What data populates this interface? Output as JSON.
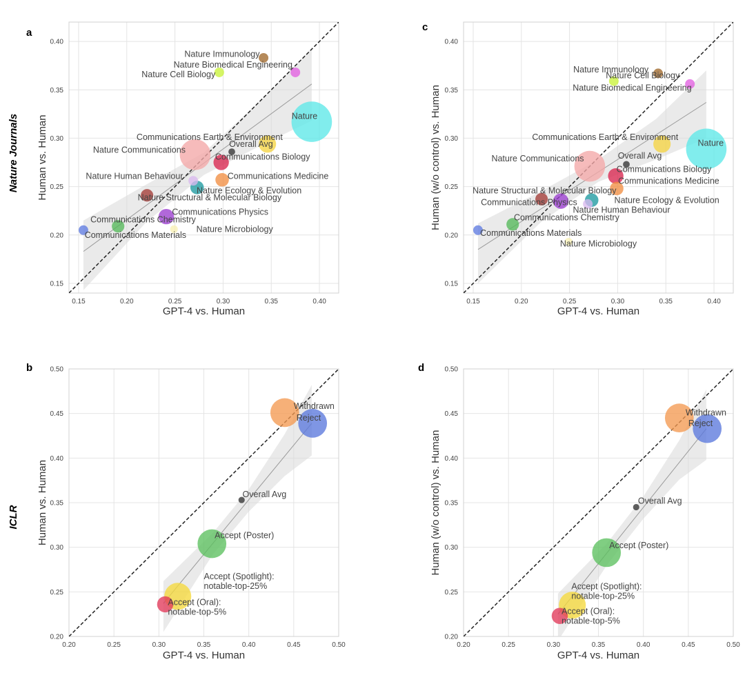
{
  "row_labels": [
    "Nature Journals",
    "ICLR"
  ],
  "chart_data": [
    {
      "panel": "a",
      "type": "scatter",
      "xlabel": "GPT-4 vs. Human",
      "ylabel": "Human vs. Human",
      "xlim": [
        0.14,
        0.42
      ],
      "ylim": [
        0.14,
        0.42
      ],
      "xticks": [
        "0.15",
        "0.20",
        "0.25",
        "0.30",
        "0.35",
        "0.40"
      ],
      "yticks": [
        "0.15",
        "0.20",
        "0.25",
        "0.30",
        "0.35",
        "0.40"
      ],
      "diagonal": true,
      "trend": [
        [
          0.155,
          0.183
        ],
        [
          0.392,
          0.356
        ]
      ],
      "band_upper": [
        [
          0.155,
          0.215
        ],
        [
          0.22,
          0.252
        ],
        [
          0.28,
          0.285
        ],
        [
          0.34,
          0.34
        ],
        [
          0.392,
          0.393
        ]
      ],
      "band_lower": [
        [
          0.155,
          0.143
        ],
        [
          0.22,
          0.213
        ],
        [
          0.28,
          0.262
        ],
        [
          0.34,
          0.293
        ],
        [
          0.392,
          0.318
        ]
      ],
      "points": [
        {
          "label": "Nature Immunology",
          "x": 0.342,
          "y": 0.383,
          "size": 0.005,
          "color": "#a0692b",
          "lx": 0.338,
          "ly": 0.384,
          "anchor": "end"
        },
        {
          "label": "Nature Biomedical Engineering",
          "x": 0.375,
          "y": 0.368,
          "size": 0.005,
          "color": "#e25fe0",
          "lx": 0.372,
          "ly": 0.373,
          "anchor": "end"
        },
        {
          "label": "Nature Cell Biology",
          "x": 0.296,
          "y": 0.368,
          "size": 0.005,
          "color": "#c9f23a",
          "lx": 0.292,
          "ly": 0.363,
          "anchor": "end"
        },
        {
          "label": "Nature",
          "x": 0.392,
          "y": 0.317,
          "size": 0.021,
          "color": "#5ee8e8",
          "lx": 0.398,
          "ly": 0.32,
          "anchor": "end"
        },
        {
          "label": "Communications Earth & Environment",
          "x": 0.346,
          "y": 0.294,
          "size": 0.009,
          "color": "#f5d442",
          "lx": 0.286,
          "ly": 0.298,
          "anchor": "middle"
        },
        {
          "label": "Nature Communications",
          "x": 0.271,
          "y": 0.283,
          "size": 0.016,
          "color": "#f4a8a8",
          "lx": 0.261,
          "ly": 0.285,
          "anchor": "end"
        },
        {
          "label": "Overall Avg",
          "x": 0.309,
          "y": 0.286,
          "size": 0.0035,
          "color": "#333333",
          "lx": 0.329,
          "ly": 0.291,
          "anchor": "middle"
        },
        {
          "label": "Communications Biology",
          "x": 0.298,
          "y": 0.275,
          "size": 0.008,
          "color": "#d8254e",
          "lx": 0.341,
          "ly": 0.278,
          "anchor": "middle"
        },
        {
          "label": "Nature Human Behaviour",
          "x": 0.269,
          "y": 0.256,
          "size": 0.005,
          "color": "#d8b8ee",
          "lx": 0.208,
          "ly": 0.258,
          "anchor": "middle"
        },
        {
          "label": "Communications Medicine",
          "x": 0.299,
          "y": 0.257,
          "size": 0.007,
          "color": "#f18e42",
          "lx": 0.357,
          "ly": 0.258,
          "anchor": "middle"
        },
        {
          "label": "Nature Ecology & Evolution",
          "x": 0.273,
          "y": 0.249,
          "size": 0.007,
          "color": "#1d9aa0",
          "lx": 0.327,
          "ly": 0.243,
          "anchor": "middle"
        },
        {
          "label": "Nature Structural & Molecular Biology",
          "x": 0.221,
          "y": 0.241,
          "size": 0.0065,
          "color": "#a33b36",
          "lx": 0.286,
          "ly": 0.236,
          "anchor": "middle"
        },
        {
          "label": "Communications Physics",
          "x": 0.241,
          "y": 0.219,
          "size": 0.008,
          "color": "#9b3dd0",
          "lx": 0.297,
          "ly": 0.221,
          "anchor": "middle"
        },
        {
          "label": "Communications Chemistry",
          "x": 0.191,
          "y": 0.209,
          "size": 0.0065,
          "color": "#55b85a",
          "lx": 0.217,
          "ly": 0.213,
          "anchor": "middle"
        },
        {
          "label": "Nature Microbiology",
          "x": 0.249,
          "y": 0.206,
          "size": 0.004,
          "color": "#f9f1b5",
          "lx": 0.312,
          "ly": 0.203,
          "anchor": "middle"
        },
        {
          "label": "Communications Materials",
          "x": 0.155,
          "y": 0.205,
          "size": 0.005,
          "color": "#5f7be0",
          "lx": 0.209,
          "ly": 0.197,
          "anchor": "middle"
        }
      ]
    },
    {
      "panel": "c",
      "type": "scatter",
      "xlabel": "GPT-4 vs. Human",
      "ylabel": "Human (w/o control) vs. Human",
      "xlim": [
        0.14,
        0.42
      ],
      "ylim": [
        0.14,
        0.42
      ],
      "xticks": [
        "0.15",
        "0.20",
        "0.25",
        "0.30",
        "0.35",
        "0.40"
      ],
      "yticks": [
        "0.15",
        "0.20",
        "0.25",
        "0.30",
        "0.35",
        "0.40"
      ],
      "diagonal": true,
      "trend": [
        [
          0.155,
          0.185
        ],
        [
          0.392,
          0.337
        ]
      ],
      "band_upper": [
        [
          0.155,
          0.212
        ],
        [
          0.22,
          0.245
        ],
        [
          0.28,
          0.278
        ],
        [
          0.34,
          0.32
        ],
        [
          0.392,
          0.37
        ]
      ],
      "band_lower": [
        [
          0.155,
          0.15
        ],
        [
          0.22,
          0.213
        ],
        [
          0.28,
          0.255
        ],
        [
          0.34,
          0.278
        ],
        [
          0.392,
          0.3
        ]
      ],
      "points": [
        {
          "label": "Nature Immunology",
          "x": 0.342,
          "y": 0.367,
          "size": 0.005,
          "color": "#a0692b",
          "lx": 0.293,
          "ly": 0.368,
          "anchor": "middle"
        },
        {
          "label": "Nature Cell Biology",
          "x": 0.296,
          "y": 0.359,
          "size": 0.005,
          "color": "#c9f23a",
          "lx": 0.326,
          "ly": 0.362,
          "anchor": "middle"
        },
        {
          "label": "Nature Biomedical Engineering",
          "x": 0.375,
          "y": 0.356,
          "size": 0.005,
          "color": "#e25fe0",
          "lx": 0.315,
          "ly": 0.349,
          "anchor": "middle"
        },
        {
          "label": "Nature",
          "x": 0.392,
          "y": 0.289,
          "size": 0.021,
          "color": "#5ee8e8",
          "lx": 0.41,
          "ly": 0.292,
          "anchor": "end"
        },
        {
          "label": "Communications Earth & Environment",
          "x": 0.346,
          "y": 0.294,
          "size": 0.009,
          "color": "#f5d442",
          "lx": 0.287,
          "ly": 0.298,
          "anchor": "middle"
        },
        {
          "label": "Nature Communications",
          "x": 0.271,
          "y": 0.271,
          "size": 0.016,
          "color": "#f4a8a8",
          "lx": 0.265,
          "ly": 0.276,
          "anchor": "end"
        },
        {
          "label": "Overall Avg",
          "x": 0.309,
          "y": 0.273,
          "size": 0.0035,
          "color": "#333333",
          "lx": 0.323,
          "ly": 0.279,
          "anchor": "middle"
        },
        {
          "label": "Communications Biology",
          "x": 0.298,
          "y": 0.261,
          "size": 0.008,
          "color": "#d8254e",
          "lx": 0.348,
          "ly": 0.265,
          "anchor": "middle"
        },
        {
          "label": "Communications Medicine",
          "x": 0.299,
          "y": 0.248,
          "size": 0.007,
          "color": "#f18e42",
          "lx": 0.353,
          "ly": 0.253,
          "anchor": "middle"
        },
        {
          "label": "Nature Structural & Molecular Biology",
          "x": 0.221,
          "y": 0.237,
          "size": 0.0065,
          "color": "#a33b36",
          "lx": 0.224,
          "ly": 0.243,
          "anchor": "middle"
        },
        {
          "label": "Nature Ecology & Evolution",
          "x": 0.273,
          "y": 0.236,
          "size": 0.007,
          "color": "#1d9aa0",
          "lx": 0.351,
          "ly": 0.233,
          "anchor": "middle"
        },
        {
          "label": "Nature Human Behaviour",
          "x": 0.269,
          "y": 0.232,
          "size": 0.005,
          "color": "#d8b8ee",
          "lx": 0.304,
          "ly": 0.223,
          "anchor": "middle"
        },
        {
          "label": "Communications Physics",
          "x": 0.241,
          "y": 0.235,
          "size": 0.008,
          "color": "#9b3dd0",
          "lx": 0.208,
          "ly": 0.231,
          "anchor": "middle"
        },
        {
          "label": "Communications Chemistry",
          "x": 0.191,
          "y": 0.211,
          "size": 0.0065,
          "color": "#55b85a",
          "lx": 0.247,
          "ly": 0.215,
          "anchor": "middle"
        },
        {
          "label": "Communications Materials",
          "x": 0.155,
          "y": 0.205,
          "size": 0.005,
          "color": "#5f7be0",
          "lx": 0.21,
          "ly": 0.199,
          "anchor": "middle"
        },
        {
          "label": "Nature Microbiology",
          "x": 0.249,
          "y": 0.193,
          "size": 0.004,
          "color": "#f9f1b5",
          "lx": 0.28,
          "ly": 0.188,
          "anchor": "middle"
        }
      ]
    },
    {
      "panel": "b",
      "type": "scatter",
      "xlabel": "GPT-4 vs. Human",
      "ylabel": "Human vs. Human",
      "xlim": [
        0.2,
        0.5
      ],
      "ylim": [
        0.2,
        0.5
      ],
      "xticks": [
        "0.20",
        "0.25",
        "0.30",
        "0.35",
        "0.40",
        "0.45",
        "0.50"
      ],
      "yticks": [
        "0.20",
        "0.25",
        "0.30",
        "0.35",
        "0.40",
        "0.45",
        "0.50"
      ],
      "diagonal": true,
      "trend": [
        [
          0.305,
          0.237
        ],
        [
          0.47,
          0.439
        ]
      ],
      "band_upper": [
        [
          0.305,
          0.262
        ],
        [
          0.36,
          0.316
        ],
        [
          0.4,
          0.365
        ],
        [
          0.44,
          0.427
        ],
        [
          0.47,
          0.482
        ]
      ],
      "band_lower": [
        [
          0.305,
          0.205
        ],
        [
          0.36,
          0.292
        ],
        [
          0.4,
          0.34
        ],
        [
          0.44,
          0.38
        ],
        [
          0.47,
          0.403
        ]
      ],
      "points": [
        {
          "label": "Withdrawn",
          "x": 0.44,
          "y": 0.451,
          "size": 0.016,
          "color": "#f39a52",
          "lx": 0.45,
          "ly": 0.455,
          "anchor": "start"
        },
        {
          "label": "Reject",
          "x": 0.471,
          "y": 0.439,
          "size": 0.016,
          "color": "#5b79dc",
          "lx": 0.453,
          "ly": 0.442,
          "anchor": "start"
        },
        {
          "label": "Overall Avg",
          "x": 0.392,
          "y": 0.353,
          "size": 0.0035,
          "color": "#333333",
          "lx": 0.393,
          "ly": 0.356,
          "anchor": "start"
        },
        {
          "label": "Accept (Poster)",
          "x": 0.359,
          "y": 0.304,
          "size": 0.016,
          "color": "#5cc05f",
          "lx": 0.362,
          "ly": 0.31,
          "anchor": "start"
        },
        {
          "label": "Accept (Spotlight):\nnotable-top-25%",
          "x": 0.321,
          "y": 0.245,
          "size": 0.015,
          "color": "#f5d83c",
          "lx": 0.35,
          "ly": 0.264,
          "anchor": "start"
        },
        {
          "label": "Accept (Oral):\nnotable-top-5%",
          "x": 0.307,
          "y": 0.236,
          "size": 0.009,
          "color": "#e13a5a",
          "lx": 0.31,
          "ly": 0.235,
          "anchor": "start"
        }
      ]
    },
    {
      "panel": "d",
      "type": "scatter",
      "xlabel": "GPT-4 vs. Human",
      "ylabel": "Human (w/o control) vs. Human",
      "xlim": [
        0.2,
        0.5
      ],
      "ylim": [
        0.2,
        0.5
      ],
      "xticks": [
        "0.20",
        "0.25",
        "0.30",
        "0.35",
        "0.40",
        "0.45",
        "0.50"
      ],
      "yticks": [
        "0.20",
        "0.25",
        "0.30",
        "0.35",
        "0.40",
        "0.45",
        "0.50"
      ],
      "diagonal": true,
      "trend": [
        [
          0.305,
          0.225
        ],
        [
          0.47,
          0.433
        ]
      ],
      "band_upper": [
        [
          0.305,
          0.248
        ],
        [
          0.36,
          0.305
        ],
        [
          0.4,
          0.357
        ],
        [
          0.44,
          0.42
        ],
        [
          0.47,
          0.477
        ]
      ],
      "band_lower": [
        [
          0.305,
          0.195
        ],
        [
          0.36,
          0.281
        ],
        [
          0.4,
          0.332
        ],
        [
          0.44,
          0.376
        ],
        [
          0.47,
          0.398
        ]
      ],
      "points": [
        {
          "label": "Withdrawn",
          "x": 0.44,
          "y": 0.445,
          "size": 0.016,
          "color": "#f39a52",
          "lx": 0.447,
          "ly": 0.448,
          "anchor": "start"
        },
        {
          "label": "Reject",
          "x": 0.471,
          "y": 0.433,
          "size": 0.016,
          "color": "#5b79dc",
          "lx": 0.45,
          "ly": 0.436,
          "anchor": "start"
        },
        {
          "label": "Overall Avg",
          "x": 0.392,
          "y": 0.345,
          "size": 0.0035,
          "color": "#333333",
          "lx": 0.394,
          "ly": 0.349,
          "anchor": "start"
        },
        {
          "label": "Accept (Poster)",
          "x": 0.359,
          "y": 0.294,
          "size": 0.016,
          "color": "#5cc05f",
          "lx": 0.362,
          "ly": 0.299,
          "anchor": "start"
        },
        {
          "label": "Accept (Spotlight):\nnotable-top-25%",
          "x": 0.321,
          "y": 0.235,
          "size": 0.015,
          "color": "#f5d83c",
          "lx": 0.32,
          "ly": 0.253,
          "anchor": "start"
        },
        {
          "label": "Accept (Oral):\nnotable-top-5%",
          "x": 0.307,
          "y": 0.223,
          "size": 0.009,
          "color": "#e13a5a",
          "lx": 0.309,
          "ly": 0.225,
          "anchor": "start"
        }
      ]
    }
  ]
}
